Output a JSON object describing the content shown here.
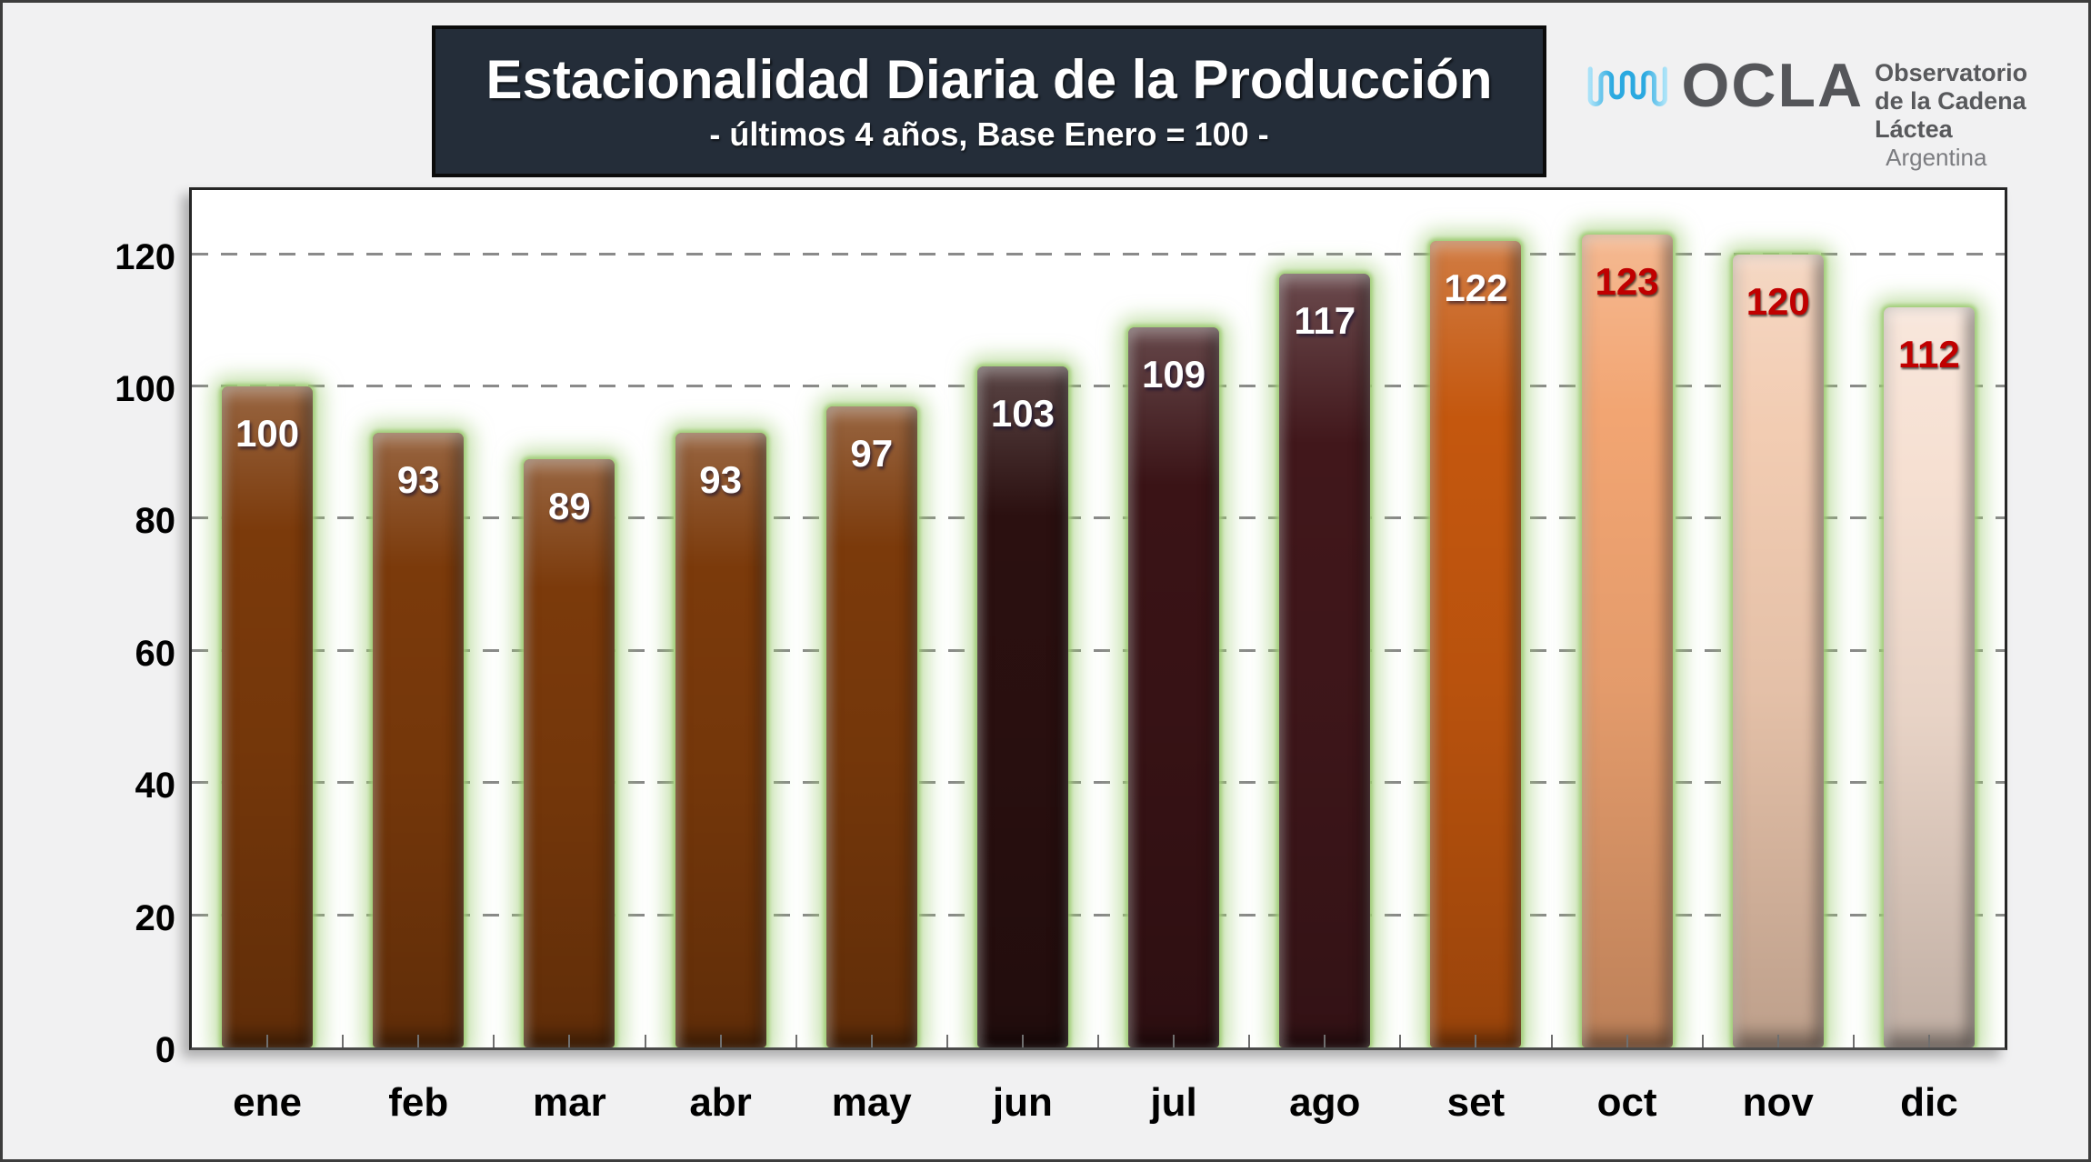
{
  "page": {
    "background": "#F1F1F2",
    "border_color": "#3d3d3d"
  },
  "header": {
    "title": "Estacionalidad Diaria de la Producción",
    "subtitle": "- últimos 4 años, Base Enero = 100 -",
    "box_bg": "#242D39",
    "text_color": "#FFFFFF"
  },
  "logo": {
    "brand": "OCLA",
    "line1": "Observatorio",
    "line2": "de la Cadena Láctea",
    "line3": "Argentina",
    "brand_color": "#55565A",
    "text_color": "#58595C",
    "muted_color": "#7B7C80",
    "wave_color_main": "#29ABE2",
    "wave_color_light": "#9FDCF8"
  },
  "chart_data": {
    "type": "bar",
    "title": "Estacionalidad Diaria de la Producción",
    "subtitle": "- últimos 4 años, Base Enero = 100 -",
    "categories": [
      "ene",
      "feb",
      "mar",
      "abr",
      "may",
      "jun",
      "jul",
      "ago",
      "set",
      "oct",
      "nov",
      "dic"
    ],
    "values": [
      100,
      93,
      89,
      93,
      97,
      103,
      109,
      117,
      122,
      123,
      120,
      112
    ],
    "bar_colors": [
      "#7B3A0B",
      "#7B3A0B",
      "#7B3A0B",
      "#7B3A0B",
      "#7B3A0B",
      "#2B1010",
      "#3A1316",
      "#41171B",
      "#C4570E",
      "#F2A572",
      "#F2CCB2",
      "#F6E0D2"
    ],
    "label_colors": [
      "#FFFFFF",
      "#FFFFFF",
      "#FFFFFF",
      "#FFFFFF",
      "#FFFFFF",
      "#FFFFFF",
      "#FFFFFF",
      "#FFFFFF",
      "#FFFFFF",
      "#C00000",
      "#C00000",
      "#C00000"
    ],
    "ylabel": "",
    "xlabel": "",
    "ylim": [
      0,
      130
    ],
    "yticks": [
      0,
      20,
      40,
      60,
      80,
      100,
      120
    ],
    "grid": "horizontal-dashed",
    "grid_color": "#8a8a8a",
    "glow_color": "#9CCB72",
    "legend": "none"
  }
}
